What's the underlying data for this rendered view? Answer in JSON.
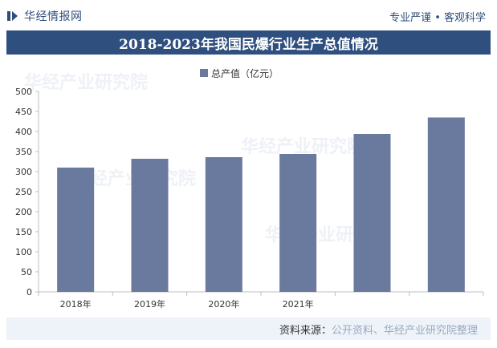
{
  "header": {
    "brand_name": "华经情报网",
    "slogan": "专业严谨 • 客观科学"
  },
  "title": "2018-2023年我国民爆行业生产总值情况",
  "watermark": "华经产业研究院",
  "footer": {
    "source_label": "资料来源：",
    "source_text": "公开资料、华经产业研究院整理"
  },
  "colors": {
    "bar": "#6a7a9e",
    "title_bg": "#2f4f7f",
    "brand": "#2e4d7b"
  },
  "chart_data": {
    "type": "bar",
    "categories": [
      "2018年",
      "2019年",
      "2020年",
      "2021年",
      "",
      ""
    ],
    "series": [
      {
        "name": "总产值（亿元）",
        "values": [
          310,
          332,
          336,
          344,
          394,
          435
        ]
      }
    ],
    "ylim": [
      0,
      500
    ],
    "yticks": [
      0,
      50,
      100,
      150,
      200,
      250,
      300,
      350,
      400,
      450,
      500
    ],
    "grid": false,
    "legend": "top-center"
  }
}
